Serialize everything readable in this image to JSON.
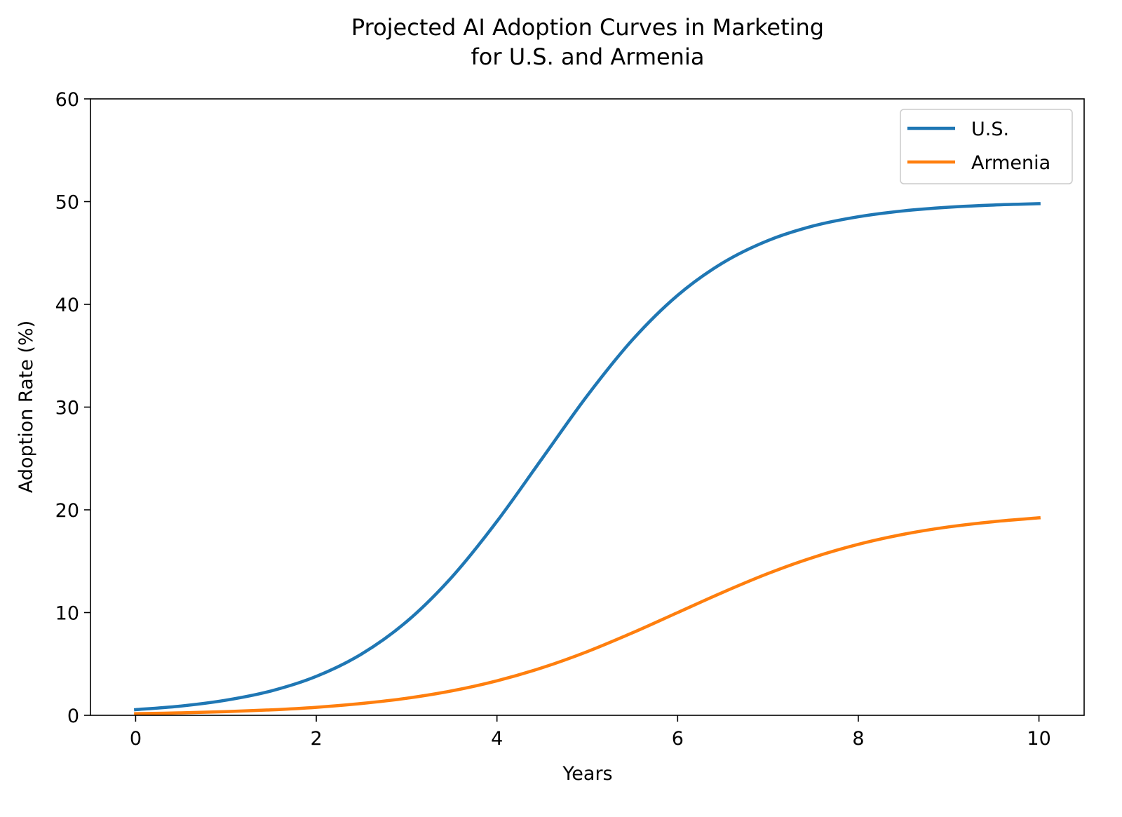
{
  "chart_data": {
    "type": "line",
    "title_lines": [
      "Projected AI Adoption Curves in Marketing",
      "for U.S. and Armenia"
    ],
    "xlabel": "Years",
    "ylabel": "Adoption Rate (%)",
    "xlim": [
      -0.5,
      10.5
    ],
    "ylim": [
      0,
      60
    ],
    "xticks": [
      0,
      2,
      4,
      6,
      8,
      10
    ],
    "yticks": [
      0,
      10,
      20,
      30,
      40,
      50,
      60
    ],
    "grid": false,
    "legend_position": "top-right",
    "x": [
      0,
      0.5,
      1,
      1.5,
      2,
      2.5,
      3,
      3.5,
      4,
      4.5,
      5,
      5.5,
      6,
      6.5,
      7,
      7.5,
      8,
      8.5,
      9,
      9.5,
      10
    ],
    "series": [
      {
        "name": "U.S.",
        "color": "#1f77b4",
        "values": [
          0.55,
          0.9,
          1.47,
          2.37,
          3.79,
          5.96,
          9.12,
          13.45,
          18.88,
          25.0,
          31.12,
          36.55,
          40.88,
          44.04,
          46.21,
          47.63,
          48.53,
          49.1,
          49.45,
          49.67,
          49.8
        ]
      },
      {
        "name": "Armenia",
        "color": "#ff7f0e",
        "values": [
          0.16,
          0.24,
          0.36,
          0.53,
          0.78,
          1.15,
          1.66,
          2.38,
          3.36,
          4.63,
          6.2,
          8.03,
          10.0,
          11.97,
          13.8,
          15.37,
          16.64,
          17.62,
          18.34,
          18.85,
          19.22
        ]
      }
    ]
  }
}
